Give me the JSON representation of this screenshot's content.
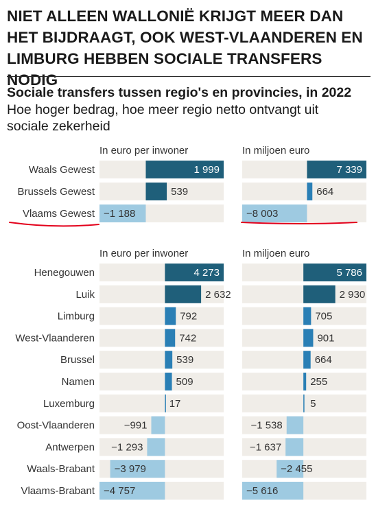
{
  "headline": "NIET ALLEEN WALLONIË KRIJGT MEER DAN HET BIJDRAAGT, OOK WEST-VLAANDEREN EN LIMBURG HEBBEN SOCIALE TRANSFERS NODIG",
  "colors": {
    "dark": "#1f5f7a",
    "mid": "#2a7fb5",
    "light": "#9ecae1",
    "track": "#f0ede8",
    "annotation": "#e3001b"
  },
  "chart_data": {
    "type": "bar",
    "title": "Sociale transfers tussen regio's en provincies, in 2022",
    "subtitle": "Hoe hoger bedrag, hoe meer regio netto ontvangt uit sociale zekerheid",
    "panels": [
      {
        "group": "regions",
        "axis_title": "In euro per inwoner",
        "categories": [
          "Waals Gewest",
          "Brussels Gewest",
          "Vlaams Gewest"
        ],
        "values": [
          1999,
          539,
          -1188
        ],
        "value_labels": [
          "1 999",
          "539",
          "−1 188"
        ]
      },
      {
        "group": "regions",
        "axis_title": "In miljoen euro",
        "categories": [
          "Waals Gewest",
          "Brussels Gewest",
          "Vlaams Gewest"
        ],
        "values": [
          7339,
          664,
          -8003
        ],
        "value_labels": [
          "7 339",
          "664",
          "−8 003"
        ]
      },
      {
        "group": "provinces",
        "axis_title": "In euro per inwoner",
        "categories": [
          "Henegouwen",
          "Luik",
          "Limburg",
          "West-Vlaanderen",
          "Brussel",
          "Namen",
          "Luxemburg",
          "Oost-Vlaanderen",
          "Antwerpen",
          "Waals-Brabant",
          "Vlaams-Brabant"
        ],
        "values": [
          4273,
          2632,
          792,
          742,
          539,
          509,
          17,
          -991,
          -1293,
          -3979,
          -4757
        ],
        "value_labels": [
          "4 273",
          "2 632",
          "792",
          "742",
          "539",
          "509",
          "17",
          "−991",
          "−1 293",
          "−3 979",
          "−4 757"
        ]
      },
      {
        "group": "provinces",
        "axis_title": "In miljoen euro",
        "categories": [
          "Henegouwen",
          "Luik",
          "Limburg",
          "West-Vlaanderen",
          "Brussel",
          "Namen",
          "Luxemburg",
          "Oost-Vlaanderen",
          "Antwerpen",
          "Waals-Brabant",
          "Vlaams-Brabant"
        ],
        "values": [
          5786,
          2930,
          705,
          901,
          664,
          255,
          5,
          -1538,
          -1637,
          -2455,
          -5616
        ],
        "value_labels": [
          "5 786",
          "2 930",
          "705",
          "901",
          "664",
          "255",
          "5",
          "−1 538",
          "−1 637",
          "−2 455",
          "−5 616"
        ]
      }
    ],
    "highlight": "Vlaams Gewest"
  }
}
